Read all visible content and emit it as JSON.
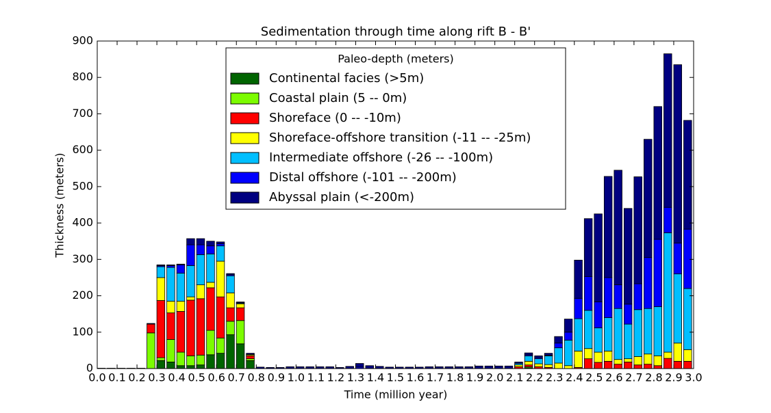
{
  "chart_data": {
    "type": "stacked_bar",
    "title": "Sedimentation through time along rift B - B'",
    "xlabel": "Time (million year)",
    "ylabel": "Thickness (meters)",
    "legend_title": "Paleo-depth (meters)",
    "legend": "upper center",
    "bar_width": 0.04,
    "x": [
      0,
      0.05,
      0.1,
      0.15,
      0.2,
      0.25,
      0.3,
      0.35,
      0.4,
      0.45,
      0.5,
      0.55,
      0.6,
      0.65,
      0.7,
      0.75,
      0.8,
      0.85,
      0.9,
      0.95,
      1,
      1.05,
      1.1,
      1.15,
      1.2,
      1.25,
      1.3,
      1.35,
      1.4,
      1.45,
      1.5,
      1.55,
      1.6,
      1.65,
      1.7,
      1.75,
      1.8,
      1.85,
      1.9,
      1.95,
      2,
      2.05,
      2.1,
      2.15,
      2.2,
      2.25,
      2.3,
      2.35,
      2.4,
      2.45,
      2.5,
      2.55,
      2.6,
      2.65,
      2.7,
      2.75,
      2.8,
      2.85,
      2.9,
      2.95
    ],
    "series": [
      {
        "name": "Continental facies (>5m)",
        "color": "#006400",
        "values": [
          0,
          0,
          0,
          0,
          0,
          0,
          22,
          18,
          8,
          8,
          10,
          38,
          42,
          93,
          68,
          22,
          0,
          0,
          0,
          0,
          0,
          0,
          0,
          0,
          0,
          0,
          0,
          0,
          0,
          0,
          0,
          0,
          0,
          0,
          0,
          0,
          0,
          0,
          0,
          0,
          0,
          0,
          0,
          2,
          0,
          0,
          0,
          0,
          0,
          0,
          0,
          0,
          0,
          0,
          0,
          0,
          0,
          0,
          0,
          0
        ]
      },
      {
        "name": "Coastal plain (5 -- 0m)",
        "color": "#7cfc00",
        "values": [
          0,
          0,
          0,
          0,
          0,
          98,
          8,
          62,
          37,
          27,
          27,
          67,
          42,
          37,
          64,
          5,
          0,
          0,
          0,
          0,
          0,
          0,
          0,
          0,
          0,
          0,
          0,
          0,
          0,
          0,
          0,
          0,
          0,
          0,
          0,
          0,
          0,
          0,
          0,
          0,
          0,
          0,
          0,
          3,
          0,
          0,
          0,
          0,
          0,
          0,
          0,
          0,
          0,
          0,
          0,
          0,
          0,
          0,
          0,
          0
        ]
      },
      {
        "name": "Shoreface (0 -- -10m)",
        "color": "#ff0000",
        "values": [
          0,
          0,
          0,
          0,
          0,
          24,
          157,
          73,
          112,
          153,
          155,
          117,
          113,
          37,
          35,
          8,
          0,
          0,
          0,
          0,
          0,
          0,
          0,
          0,
          0,
          0,
          0,
          0,
          0,
          0,
          0,
          0,
          0,
          0,
          0,
          0,
          0,
          0,
          0,
          0,
          0,
          0,
          5,
          5,
          5,
          3,
          0,
          0,
          3,
          27,
          17,
          20,
          12,
          18,
          10,
          12,
          8,
          28,
          20,
          20
        ]
      },
      {
        "name": "Shoreface-offshore transition (-11 -- -25m)",
        "color": "#ffff00",
        "values": [
          0,
          0,
          0,
          0,
          0,
          0,
          63,
          32,
          28,
          9,
          38,
          15,
          98,
          41,
          11,
          3,
          0,
          0,
          0,
          0,
          0,
          0,
          0,
          0,
          0,
          0,
          0,
          0,
          0,
          0,
          0,
          0,
          0,
          0,
          0,
          0,
          0,
          0,
          0,
          0,
          0,
          0,
          5,
          10,
          8,
          8,
          15,
          8,
          45,
          28,
          28,
          28,
          13,
          9,
          23,
          28,
          27,
          17,
          50,
          32
        ]
      },
      {
        "name": "Intermediate offshore (-26 -- -100m)",
        "color": "#00bfff",
        "values": [
          0,
          0,
          0,
          0,
          0,
          0,
          30,
          93,
          77,
          86,
          83,
          78,
          42,
          47,
          2,
          1,
          0,
          0,
          0,
          0,
          0,
          0,
          0,
          0,
          0,
          0,
          0,
          0,
          0,
          0,
          0,
          0,
          0,
          0,
          0,
          0,
          0,
          0,
          0,
          0,
          0,
          0,
          4,
          15,
          14,
          24,
          42,
          70,
          89,
          105,
          67,
          92,
          140,
          95,
          129,
          125,
          135,
          328,
          190,
          168
        ]
      },
      {
        "name": "Distal offshore (-101 -- -200m)",
        "color": "#0000ff",
        "values": [
          0,
          0,
          0,
          0,
          0,
          0,
          3,
          5,
          23,
          57,
          27,
          22,
          6,
          3,
          1,
          0,
          0,
          0,
          0,
          0,
          0,
          0,
          0,
          0,
          0,
          0,
          4,
          0,
          0,
          0,
          0,
          0,
          0,
          0,
          0,
          0,
          0,
          0,
          0,
          0,
          0,
          0,
          0,
          3,
          3,
          2,
          13,
          22,
          56,
          93,
          71,
          110,
          65,
          55,
          71,
          140,
          185,
          70,
          85,
          163
        ]
      },
      {
        "name": "Abyssal plain (<-200m)",
        "color": "#000080",
        "values": [
          1,
          1,
          1,
          1,
          1,
          2,
          2,
          2,
          2,
          17,
          17,
          13,
          5,
          3,
          2,
          3,
          4,
          3,
          3,
          5,
          5,
          5,
          5,
          5,
          3,
          6,
          10,
          8,
          6,
          4,
          4,
          4,
          4,
          5,
          5,
          5,
          5,
          5,
          7,
          7,
          7,
          7,
          4,
          5,
          5,
          5,
          18,
          36,
          105,
          159,
          242,
          278,
          315,
          263,
          294,
          325,
          365,
          422,
          490,
          299
        ]
      }
    ],
    "xlim": [
      0,
      3
    ],
    "xticks": [
      {
        "value": 0,
        "label": "0.0"
      },
      0.1,
      0.2,
      0.3,
      0.4,
      0.5,
      0.6,
      0.7,
      0.8,
      0.9,
      {
        "value": 1,
        "label": "1.0"
      },
      1.1,
      1.2,
      1.3,
      1.4,
      1.5,
      1.6,
      1.7,
      1.8,
      1.9,
      {
        "value": 2,
        "label": "2.0"
      },
      2.1,
      2.2,
      2.3,
      2.4,
      2.5,
      2.6,
      2.7,
      2.8,
      2.9,
      {
        "value": 3,
        "label": "3.0"
      }
    ],
    "ylim": [
      0,
      900
    ],
    "yticks": [
      0,
      100,
      200,
      300,
      400,
      500,
      600,
      700,
      800,
      900
    ]
  }
}
